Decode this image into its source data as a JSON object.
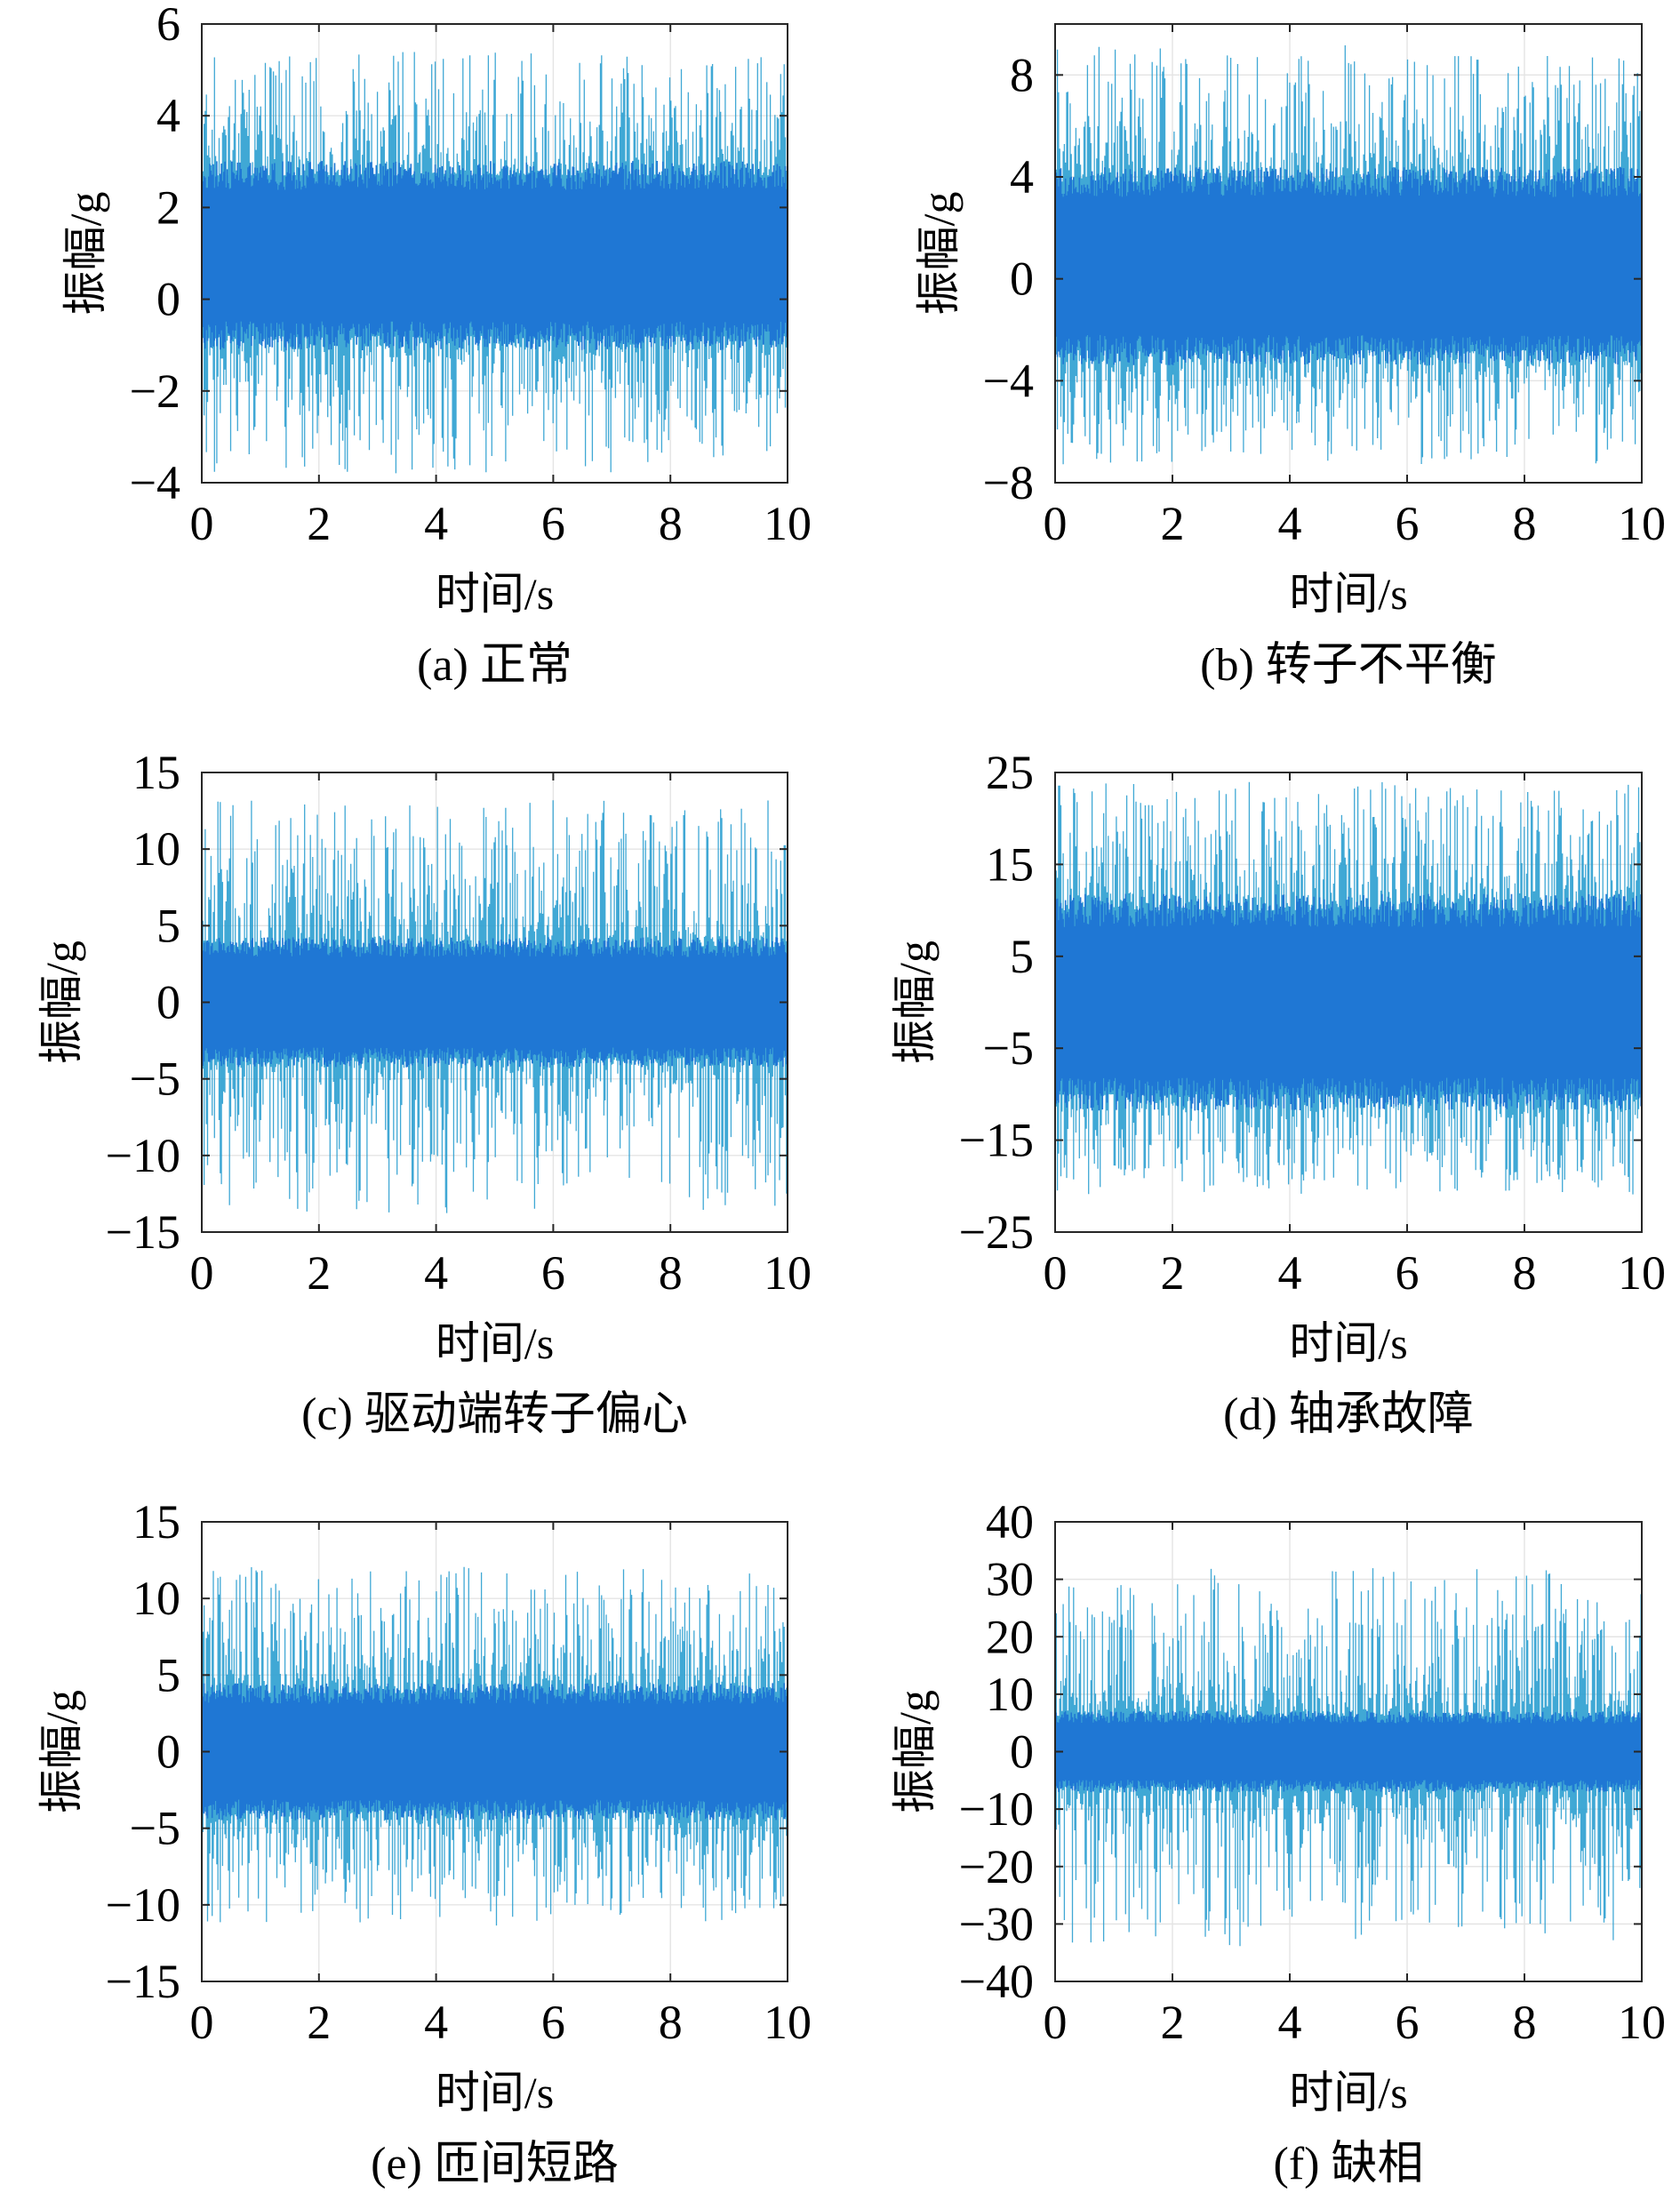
{
  "chart_data": [
    {
      "type": "line",
      "caption": "(a) 正常",
      "xlabel": "时间/s",
      "ylabel": "振幅/g",
      "xlim": [
        0,
        10
      ],
      "ylim": [
        -4,
        6
      ],
      "xticks": [
        0,
        2,
        4,
        6,
        8,
        10
      ],
      "yticks": [
        -4,
        -2,
        0,
        2,
        4,
        6
      ],
      "ytick_labels": [
        "−4",
        "−2",
        "0",
        "2",
        "4",
        "6"
      ],
      "grid": true,
      "series": [
        {
          "kind": "vibration",
          "duration_s": 10,
          "core_center": 0.8,
          "core_low": -0.8,
          "core_high": 2.7,
          "envelope_low": -3.8,
          "envelope_high": 5.4,
          "color": "#1f77d4",
          "spike_color": "#2b9fd0"
        }
      ]
    },
    {
      "type": "line",
      "caption": "(b) 转子不平衡",
      "xlabel": "时间/s",
      "ylabel": "振幅/g",
      "xlim": [
        0,
        10
      ],
      "ylim": [
        -8,
        10
      ],
      "xticks": [
        0,
        2,
        4,
        6,
        8,
        10
      ],
      "yticks": [
        -8,
        -4,
        0,
        4,
        8
      ],
      "ytick_labels": [
        "−8",
        "−4",
        "0",
        "4",
        "8"
      ],
      "grid": true,
      "series": [
        {
          "kind": "vibration",
          "duration_s": 10,
          "core_center": 0.2,
          "core_low": -2.8,
          "core_high": 3.8,
          "envelope_low": -7.3,
          "envelope_high": 9.2,
          "color": "#1f77d4",
          "spike_color": "#2b9fd0"
        }
      ]
    },
    {
      "type": "line",
      "caption": "(c) 驱动端转子偏心",
      "xlabel": "时间/s",
      "ylabel": "振幅/g",
      "xlim": [
        0,
        10
      ],
      "ylim": [
        -15,
        15
      ],
      "xticks": [
        0,
        2,
        4,
        6,
        8,
        10
      ],
      "yticks": [
        -15,
        -10,
        -5,
        0,
        5,
        10,
        15
      ],
      "ytick_labels": [
        "−15",
        "−10",
        "−5",
        "0",
        "5",
        "10",
        "15"
      ],
      "grid": true,
      "series": [
        {
          "kind": "vibration",
          "duration_s": 10,
          "core_center": 0.0,
          "core_low": -3.6,
          "core_high": 3.6,
          "envelope_low": -13.8,
          "envelope_high": 13.2,
          "color": "#1f77d4",
          "spike_color": "#2b9fd0"
        }
      ]
    },
    {
      "type": "line",
      "caption": "(d) 轴承故障",
      "xlabel": "时间/s",
      "ylabel": "振幅/g",
      "xlim": [
        0,
        10
      ],
      "ylim": [
        -25,
        25
      ],
      "xticks": [
        0,
        2,
        4,
        6,
        8,
        10
      ],
      "yticks": [
        -25,
        -15,
        -5,
        5,
        15,
        25
      ],
      "ytick_labels": [
        "−25",
        "−15",
        "−5",
        "5",
        "15",
        "25"
      ],
      "grid": true,
      "series": [
        {
          "kind": "vibration",
          "duration_s": 10,
          "core_center": 0.0,
          "core_low": -10,
          "core_high": 10,
          "envelope_low": -21,
          "envelope_high": 24,
          "color": "#1f77d4",
          "spike_color": "#2b9fd0"
        }
      ]
    },
    {
      "type": "line",
      "caption": "(e) 匝间短路",
      "xlabel": "时间/s",
      "ylabel": "振幅/g",
      "xlim": [
        0,
        10
      ],
      "ylim": [
        -15,
        15
      ],
      "xticks": [
        0,
        2,
        4,
        6,
        8,
        10
      ],
      "yticks": [
        -15,
        -10,
        -5,
        0,
        5,
        10,
        15
      ],
      "ytick_labels": [
        "−15",
        "−10",
        "−5",
        "0",
        "5",
        "10",
        "15"
      ],
      "grid": true,
      "series": [
        {
          "kind": "vibration",
          "duration_s": 10,
          "core_center": 0.0,
          "core_low": -3.8,
          "core_high": 3.8,
          "envelope_low": -11.5,
          "envelope_high": 12.2,
          "color": "#1f77d4",
          "spike_color": "#2b9fd0"
        }
      ]
    },
    {
      "type": "line",
      "caption": "(f) 缺相",
      "xlabel": "时间/s",
      "ylabel": "振幅/g",
      "xlim": [
        0,
        10
      ],
      "ylim": [
        -40,
        40
      ],
      "xticks": [
        0,
        2,
        4,
        6,
        8,
        10
      ],
      "yticks": [
        -40,
        -30,
        -20,
        -10,
        0,
        10,
        20,
        30,
        40
      ],
      "ytick_labels": [
        "−40",
        "−30",
        "−20",
        "−10",
        "0",
        "10",
        "20",
        "30",
        "40"
      ],
      "grid": true,
      "series": [
        {
          "kind": "vibration",
          "duration_s": 10,
          "core_center": 0.0,
          "core_low": -6,
          "core_high": 6,
          "envelope_low": -34,
          "envelope_high": 32,
          "color": "#1f77d4",
          "spike_color": "#2b9fd0"
        }
      ]
    }
  ]
}
